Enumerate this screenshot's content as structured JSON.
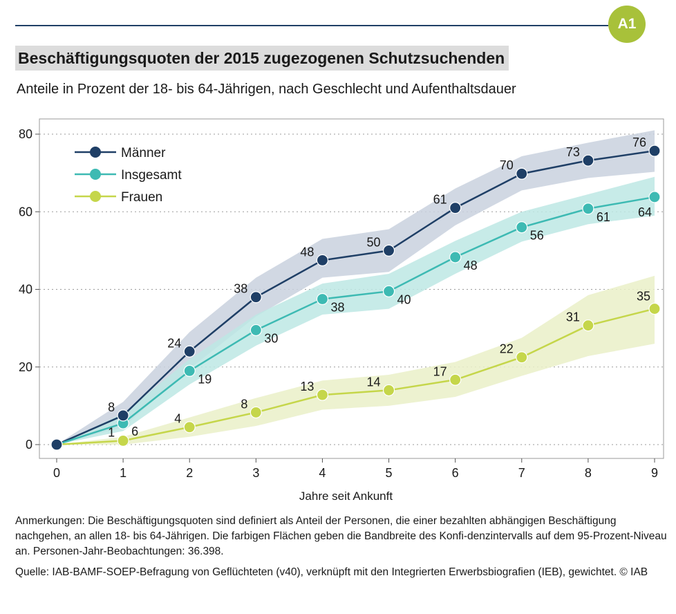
{
  "badge": "A1",
  "title": "Beschäftigungsquoten der 2015 zugezogenen Schutzsuchenden",
  "subtitle": "Anteile in Prozent der 18- bis 64-Jährigen, nach Geschlecht und Aufenthaltsdauer",
  "notes": {
    "anmerkungen": "Anmerkungen: Die Beschäftigungsquoten sind definiert als Anteil der Personen, die einer bezahlten abhängigen Beschäftigung nachgehen, an allen 18- bis 64-Jährigen. Die farbigen Flächen geben die Bandbreite des Konfi-denzintervalls auf dem 95-Prozent-Niveau an. Personen-Jahr-Beobachtungen: 36.398.",
    "quelle": "Quelle: IAB-BAMF-SOEP-Befragung von Geflüchteten (v40), verknüpft mit den Integrierten Erwerbsbiografien (IEB), gewichtet.  © IAB"
  },
  "colors": {
    "accent": "#a8c13a",
    "rule": "#1f3f66",
    "maenner": "#1f3f66",
    "insgesamt": "#3dbab3",
    "frauen": "#c5d64a"
  },
  "chart_data": {
    "type": "line",
    "xlabel": "Jahre seit Ankunft",
    "ylabel": "",
    "x": [
      0,
      1,
      2,
      3,
      4,
      5,
      6,
      7,
      8,
      9
    ],
    "xlim": [
      0,
      9
    ],
    "ylim": [
      0,
      80
    ],
    "yticks": [
      0,
      20,
      40,
      60,
      80
    ],
    "grid": true,
    "legend": "top-left",
    "series": [
      {
        "name": "Männer",
        "key": "maenner",
        "values": [
          0,
          7.5,
          24,
          38,
          47.5,
          50,
          61,
          69.8,
          73.2,
          75.7
        ],
        "labels": [
          "",
          "8",
          "24",
          "38",
          "48",
          "50",
          "61",
          "70",
          "73",
          "76"
        ],
        "label_pos": [
          "",
          "left",
          "left",
          "left",
          "left",
          "left",
          "left",
          "left",
          "left",
          "left"
        ],
        "ci_low": [
          0,
          4.5,
          19.5,
          33,
          43,
          44.5,
          56.5,
          65.5,
          68.7,
          70.3
        ],
        "ci_high": [
          0,
          11,
          29,
          43,
          53,
          55.5,
          66,
          74.3,
          77.8,
          81
        ]
      },
      {
        "name": "Insgesamt",
        "key": "insgesamt",
        "values": [
          0,
          5.5,
          19,
          29.5,
          37.5,
          39.5,
          48.3,
          56,
          60.8,
          63.8
        ],
        "labels": [
          "",
          "6",
          "19",
          "30",
          "38",
          "40",
          "48",
          "56",
          "61",
          "64"
        ],
        "label_pos": [
          "",
          "right",
          "right",
          "right",
          "right",
          "right",
          "right",
          "right",
          "right",
          "below"
        ],
        "ci_low": [
          0,
          3.5,
          15.5,
          25.5,
          33.5,
          35,
          44,
          52.3,
          56.8,
          59
        ],
        "ci_high": [
          0,
          8,
          22,
          33.5,
          41.5,
          44,
          52.5,
          60,
          64.5,
          69
        ]
      },
      {
        "name": "Frauen",
        "key": "frauen",
        "values": [
          0,
          1,
          4.5,
          8.3,
          12.8,
          14,
          16.7,
          22.5,
          30.7,
          35
        ],
        "labels": [
          "",
          "1",
          "4",
          "8",
          "13",
          "14",
          "17",
          "22",
          "31",
          "35"
        ],
        "label_pos": [
          "",
          "left",
          "left",
          "left",
          "left",
          "left",
          "left",
          "left",
          "left",
          "above"
        ],
        "ci_low": [
          0,
          0,
          2,
          4.8,
          9,
          10,
          12.3,
          17.7,
          22.8,
          26
        ],
        "ci_high": [
          0,
          2,
          7,
          12,
          16.5,
          18,
          21.3,
          27.5,
          38.5,
          43.5
        ]
      }
    ]
  }
}
